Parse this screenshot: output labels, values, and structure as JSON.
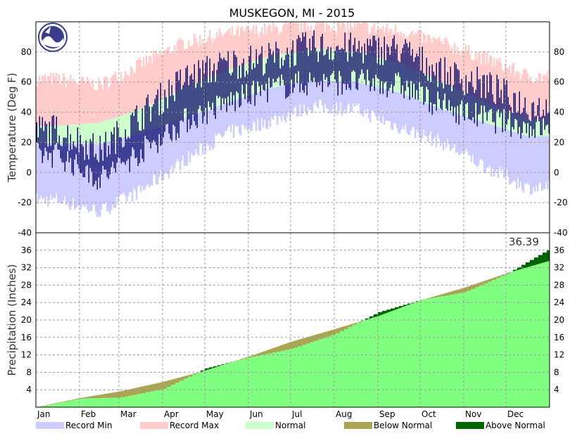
{
  "chart_data": {
    "title": "MUSKEGON, MI - 2015",
    "months": [
      "Jan",
      "Feb",
      "Mar",
      "Apr",
      "May",
      "Jun",
      "Jul",
      "Aug",
      "Sep",
      "Oct",
      "Nov",
      "Dec"
    ],
    "temperature_panel": {
      "type": "area",
      "ylabel": "Temperature (Deg F)",
      "ylim": [
        -40,
        100
      ],
      "yticks": [
        -40,
        -20,
        0,
        20,
        40,
        60,
        80
      ],
      "grid": true,
      "monthly": {
        "record_max": [
          62,
          58,
          72,
          86,
          92,
          95,
          98,
          97,
          94,
          86,
          76,
          64
        ],
        "normal_high": [
          31,
          33,
          42,
          56,
          68,
          77,
          82,
          80,
          73,
          60,
          47,
          35
        ],
        "normal_low": [
          19,
          19,
          26,
          36,
          46,
          56,
          61,
          60,
          53,
          42,
          33,
          24
        ],
        "record_min": [
          -18,
          -26,
          -12,
          8,
          26,
          34,
          44,
          42,
          30,
          20,
          4,
          -10
        ],
        "observed_high": [
          28,
          14,
          38,
          62,
          72,
          76,
          84,
          82,
          82,
          66,
          58,
          44
        ],
        "observed_low": [
          12,
          -4,
          14,
          34,
          46,
          56,
          60,
          60,
          58,
          44,
          36,
          30
        ]
      }
    },
    "precipitation_panel": {
      "type": "area",
      "ylabel": "Precipitation (Inches)",
      "ylim": [
        0,
        40
      ],
      "yticks": [
        4,
        8,
        12,
        16,
        20,
        24,
        28,
        32,
        36
      ],
      "grid": true,
      "total_label": "36.39",
      "month_end_observed": [
        2.0,
        2.2,
        4.2,
        8.9,
        11.4,
        13.4,
        16.8,
        21.8,
        24.6,
        26.4,
        30.6,
        36.39
      ],
      "month_end_normal": [
        2.1,
        3.6,
        5.8,
        8.4,
        11.6,
        15.0,
        17.9,
        20.9,
        24.5,
        27.4,
        30.7,
        33.6
      ]
    },
    "legend": [
      {
        "label": "Record Min",
        "color": "#ccccff"
      },
      {
        "label": "Record Max",
        "color": "#ffcccc"
      },
      {
        "label": "Normal",
        "color": "#ccffcc"
      },
      {
        "label": "Below Normal",
        "color": "#aaa555"
      },
      {
        "label": "Above Normal",
        "color": "#006400"
      }
    ],
    "colors": {
      "observed_temp": "#000066",
      "normal_precip": "#80ff80",
      "grid": "#999999"
    }
  }
}
